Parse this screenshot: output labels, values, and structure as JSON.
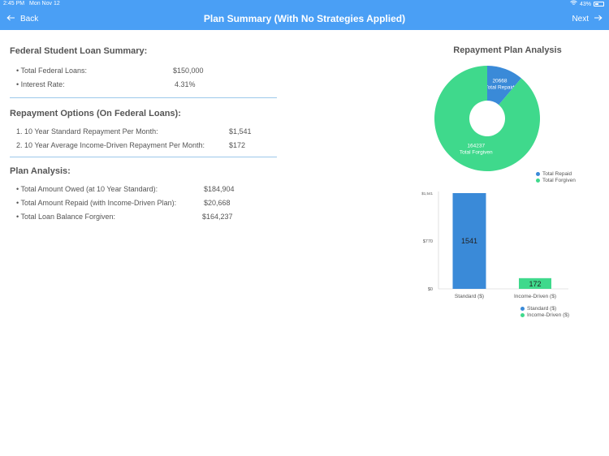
{
  "status_bar": {
    "time": "2:45 PM",
    "date": "Mon Nov 12",
    "battery": "43%"
  },
  "nav": {
    "back_label": "Back",
    "title": "Plan Summary (With No Strategies Applied)",
    "next_label": "Next"
  },
  "federal_summary": {
    "title": "Federal Student Loan Summary:",
    "items": [
      {
        "label": "• Total Federal Loans:",
        "value": "$150,000"
      },
      {
        "label": "• Interest Rate:",
        "value": "4.31%"
      }
    ]
  },
  "repayment_options": {
    "title": "Repayment Options (On Federal Loans):",
    "items": [
      {
        "label": "1. 10 Year Standard Repayment Per Month:",
        "value": "$1,541"
      },
      {
        "label": "2. 10 Year Average Income-Driven Repayment Per Month:",
        "value": "$172"
      }
    ]
  },
  "plan_analysis": {
    "title": "Plan Analysis:",
    "items": [
      {
        "label": "• Total Amount Owed (at 10 Year Standard):",
        "value": "$184,904"
      },
      {
        "label": "• Total Amount Repaid (with Income-Driven Plan):",
        "value": "$20,668"
      },
      {
        "label": "• Total Loan Balance Forgiven:",
        "value": "$164,237"
      }
    ]
  },
  "chart_data": [
    {
      "type": "pie",
      "title": "Repayment Plan Analysis",
      "labels": [
        "Total Repaid",
        "Total Forgiven"
      ],
      "values": [
        20668,
        164237
      ],
      "colors": [
        "#3a8ad8",
        "#3fd98c"
      ],
      "legend": "bottom-right"
    },
    {
      "type": "bar",
      "categories": [
        "Standard ($)",
        "Income-Driven ($)"
      ],
      "values": [
        1541,
        172
      ],
      "colors": [
        "#3a8ad8",
        "#3fd98c"
      ],
      "ylim": [
        0,
        1541
      ],
      "yticks": [
        "$0",
        "$770",
        "$1,541"
      ],
      "legend": "bottom"
    }
  ]
}
